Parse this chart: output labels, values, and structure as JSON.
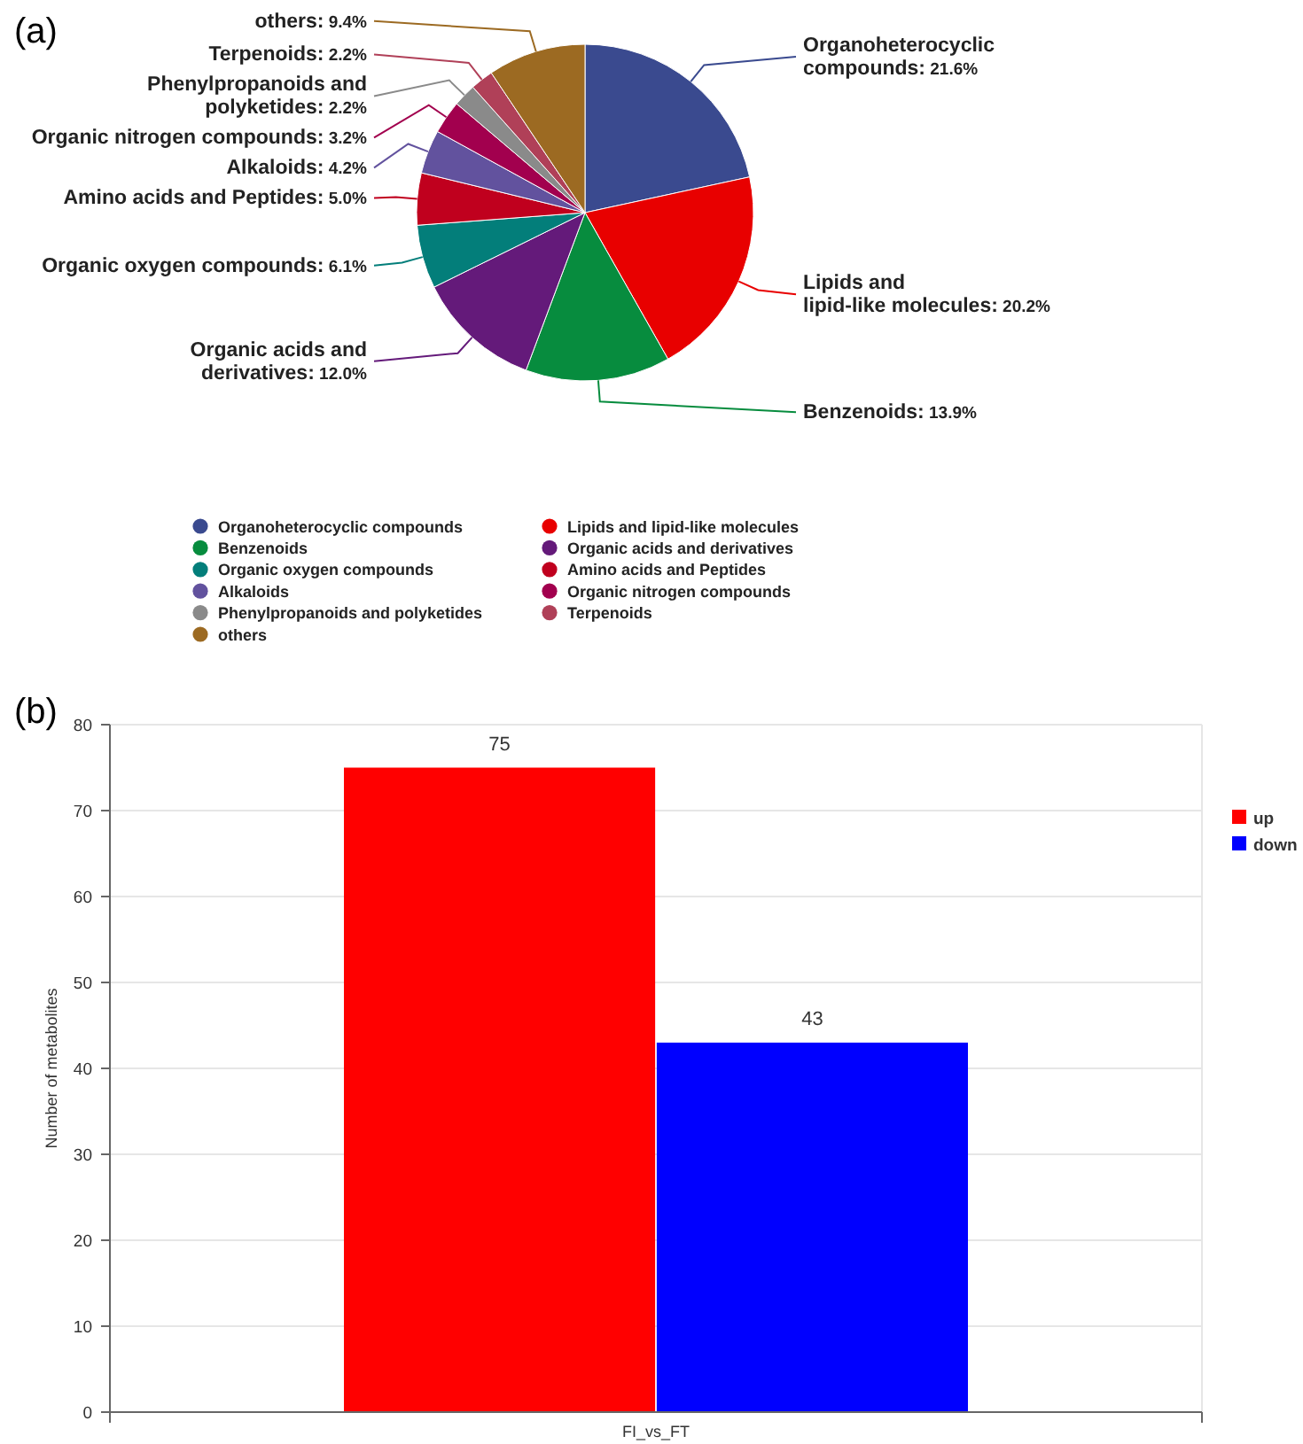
{
  "chart_data": [
    {
      "type": "pie",
      "annotations": [
        "(a)"
      ],
      "categories": [
        "Organoheterocyclic compounds",
        "Lipids and lipid-like molecules",
        "Benzenoids",
        "Organic acids and derivatives",
        "Organic oxygen compounds",
        "Amino acids and Peptides",
        "Alkaloids",
        "Organic nitrogen compounds",
        "Phenylpropanoids and polyketides",
        "Terpenoids",
        "others"
      ],
      "values": [
        21.6,
        20.2,
        13.9,
        12.0,
        6.1,
        5.0,
        4.2,
        3.2,
        2.2,
        2.2,
        9.4
      ],
      "value_labels": [
        "Organoheterocyclic compounds: 21.6%",
        "Lipids and lipid-like molecules: 20.2%",
        "Benzenoids: 13.9%",
        "Organic acids and derivatives: 12.0%",
        "Organic oxygen compounds: 6.1%",
        "Amino acids and Peptides: 5.0%",
        "Alkaloids: 4.2%",
        "Organic nitrogen compounds: 3.2%",
        "Phenylpropanoids and polyketides: 2.2%",
        "Terpenoids: 2.2%",
        "others: 9.4%"
      ],
      "colors": [
        "#3a4a8f",
        "#e80000",
        "#078c3e",
        "#641a7a",
        "#037e7a",
        "#c0001e",
        "#62529e",
        "#a2004e",
        "#8a8a8a",
        "#b04058",
        "#9c6a22"
      ],
      "legend": "bottom"
    },
    {
      "type": "bar",
      "annotations": [
        "(b)"
      ],
      "categories": [
        "FI_vs_FT"
      ],
      "ylabel": "Number of metabolites",
      "series": [
        {
          "name": "up",
          "color": "#ff0000",
          "values": [
            75
          ]
        },
        {
          "name": "down",
          "color": "#0000ff",
          "values": [
            43
          ]
        }
      ],
      "ylim": [
        0,
        80
      ],
      "yticks": [
        0,
        10,
        20,
        30,
        40,
        50,
        60,
        70,
        80
      ],
      "grid": "y",
      "legend": "right",
      "data_labels": true
    }
  ]
}
